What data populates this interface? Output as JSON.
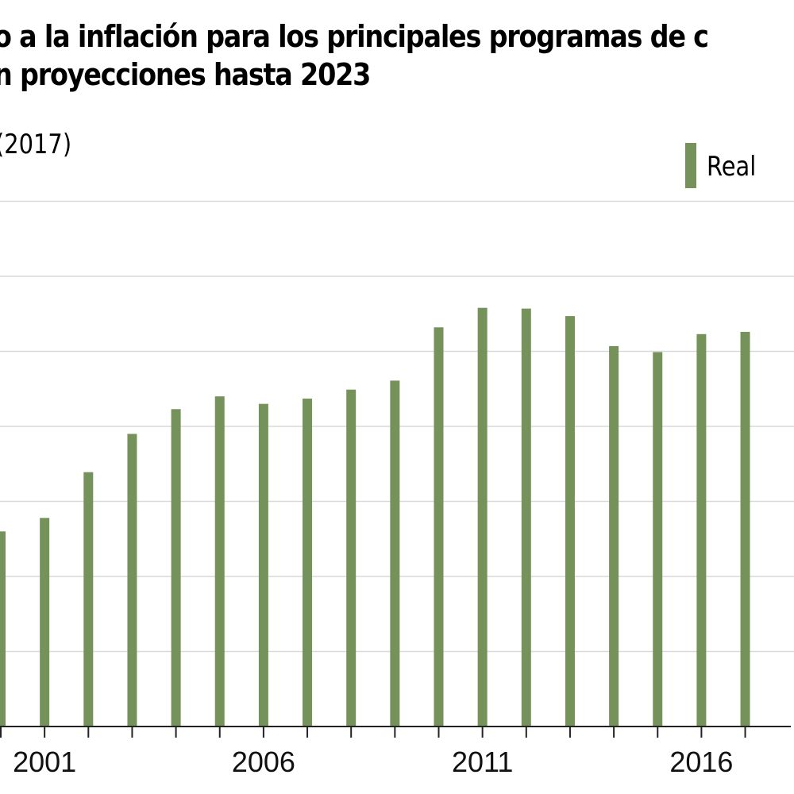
{
  "title": {
    "line1": "o a la inflación para los principales programas de c",
    "line2": "n proyecciones hasta 2023"
  },
  "subtitle": "(2017)",
  "legend": [
    {
      "label": "Real",
      "color": "#75925a"
    }
  ],
  "chart_data": {
    "type": "bar",
    "title": "…o a la inflación para los principales programas de c… / …n proyecciones hasta 2023",
    "subtitle": "(2017)",
    "xlabel": "",
    "ylabel": "",
    "y_units_note": "Y-axis tick labels are cropped out of view; values are expressed in gridline units (0 = baseline, each gridline = 1 unit).",
    "ylim": [
      0,
      7
    ],
    "y_gridlines": [
      1,
      2,
      3,
      4,
      5,
      6,
      7
    ],
    "grid": true,
    "legend_position": "top-right",
    "categories": [
      "2000",
      "2001",
      "2002",
      "2003",
      "2004",
      "2005",
      "2006",
      "2007",
      "2008",
      "2009",
      "2010",
      "2011",
      "2012",
      "2013",
      "2014",
      "2015",
      "2016",
      "2017"
    ],
    "x_tick_labels": [
      "2001",
      "2006",
      "2011",
      "2016"
    ],
    "series": [
      {
        "name": "Real",
        "color": "#75925a",
        "values": [
          2.6,
          2.78,
          3.39,
          3.9,
          4.23,
          4.4,
          4.3,
          4.37,
          4.49,
          4.61,
          5.32,
          5.58,
          5.57,
          5.47,
          5.07,
          4.99,
          5.23,
          5.26
        ]
      }
    ]
  }
}
